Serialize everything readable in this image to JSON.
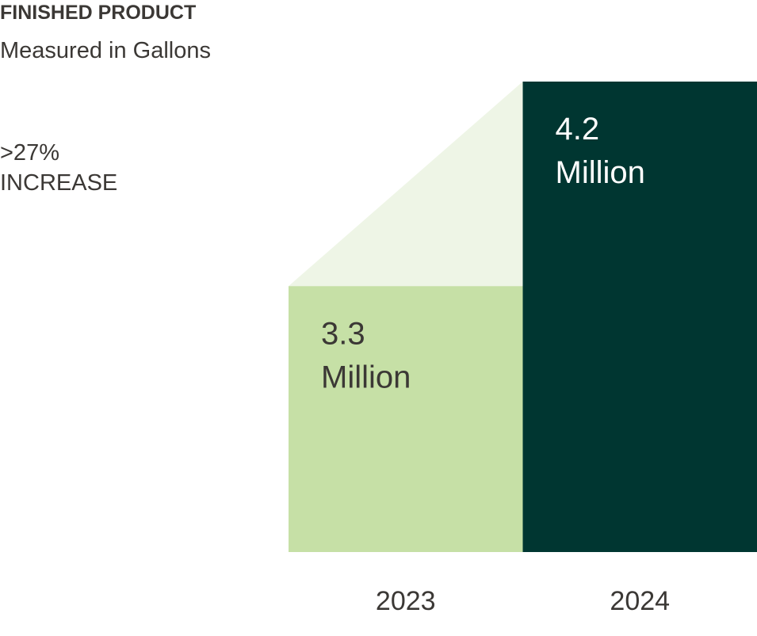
{
  "chart_data": {
    "type": "bar",
    "title": "FINISHED PRODUCT",
    "subtitle": "Measured in Gallons",
    "annotations": [
      ">27%",
      "INCREASE"
    ],
    "categories": [
      "2023",
      "2024"
    ],
    "values": [
      3.3,
      4.2
    ],
    "value_labels": [
      "3.3 Million",
      "4.2 Million"
    ],
    "colors": [
      "#c6e0a6",
      "#003631"
    ],
    "label_colors": [
      "#3b3835",
      "#ffffff"
    ],
    "connector_color": "#eef5e6",
    "ylim": [
      2.13,
      4.2
    ]
  }
}
